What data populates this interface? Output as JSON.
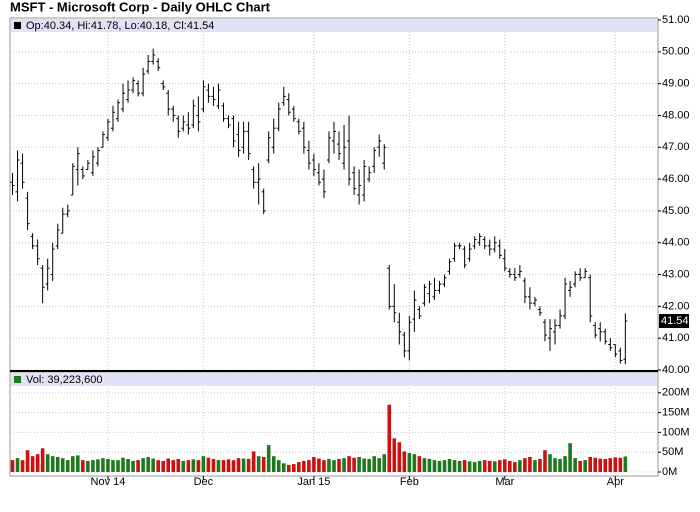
{
  "chart_data": {
    "type": "ohlc",
    "title": "MSFT - Microsoft Corp - Daily OHLC Chart",
    "ohlc_info": "Op:40.34, Hi:41.78, Lo:40.18, Cl:41.54",
    "volume_info": "Vol: 39,223,600",
    "last_price": 41.54,
    "xlim": [
      -0.5,
      128.5
    ],
    "xticks": [
      {
        "value": 19,
        "label": "Nov 14"
      },
      {
        "value": 38,
        "label": "Dec"
      },
      {
        "value": 60,
        "label": "Jan 15"
      },
      {
        "value": 79,
        "label": "Feb"
      },
      {
        "value": 98,
        "label": "Mar"
      },
      {
        "value": 120,
        "label": "Apr"
      }
    ],
    "ylim": [
      40,
      51
    ],
    "yticks": [
      {
        "value": 40,
        "label": "40.00"
      },
      {
        "value": 41,
        "label": "41.00"
      },
      {
        "value": 42,
        "label": "42.00"
      },
      {
        "value": 43,
        "label": "43.00"
      },
      {
        "value": 44,
        "label": "44.00"
      },
      {
        "value": 45,
        "label": "45.00"
      },
      {
        "value": 46,
        "label": "46.00"
      },
      {
        "value": 47,
        "label": "47.00"
      },
      {
        "value": 48,
        "label": "48.00"
      },
      {
        "value": 49,
        "label": "49.00"
      },
      {
        "value": 50,
        "label": "50.00"
      },
      {
        "value": 51,
        "label": "51.00"
      }
    ],
    "y2lim": [
      0,
      250
    ],
    "y2ticks": [
      {
        "value": 0,
        "label": "0M"
      },
      {
        "value": 50,
        "label": "50M"
      },
      {
        "value": 100,
        "label": "100M"
      },
      {
        "value": 150,
        "label": "150M"
      },
      {
        "value": 200,
        "label": "200M"
      }
    ],
    "grid": true,
    "bar_color": "#000000",
    "up_color": "#1f7a1f",
    "down_color": "#cc1111",
    "open": [
      45.9,
      45.6,
      46.5,
      45.4,
      44.2,
      43.9,
      43.2,
      42.7,
      43.0,
      43.9,
      44.3,
      44.9,
      45.5,
      46.3,
      46.3,
      46.3,
      46.2,
      46.5,
      47.0,
      47.3,
      47.6,
      47.9,
      48.2,
      48.5,
      48.8,
      49.0,
      48.7,
      49.4,
      49.7,
      49.7,
      49.0,
      48.7,
      48.2,
      47.9,
      47.6,
      47.7,
      47.7,
      48.0,
      48.2,
      48.8,
      48.6,
      48.3,
      48.3,
      47.9,
      47.9,
      47.4,
      47.0,
      47.5,
      46.3,
      45.9,
      45.6,
      46.6,
      47.0,
      47.6,
      48.4,
      48.5,
      48.2,
      47.8,
      47.6,
      46.9,
      46.6,
      46.2,
      46.0,
      46.6,
      47.2,
      47.1,
      46.5,
      47.2,
      46.2,
      45.5,
      45.5,
      46.0,
      46.4,
      47.0,
      46.5,
      43.2,
      42.0,
      41.5,
      41.1,
      40.6,
      41.6,
      41.9,
      42.1,
      42.4,
      42.3,
      42.5,
      42.7,
      43.1,
      43.5,
      43.9,
      43.8,
      43.5,
      43.9,
      44.0,
      44.1,
      43.9,
      43.8,
      43.9,
      43.5,
      43.1,
      43.0,
      43.0,
      42.8,
      42.3,
      42.1,
      41.9,
      41.5,
      41.0,
      41.2,
      41.4,
      41.7,
      42.5,
      42.7,
      43.0,
      42.9,
      42.9,
      41.4,
      41.3,
      41.2,
      40.8,
      40.8,
      40.6,
      40.34
    ],
    "high": [
      46.2,
      46.9,
      46.8,
      45.6,
      44.3,
      44.1,
      43.3,
      43.5,
      44.0,
      44.6,
      45.1,
      45.2,
      46.5,
      47.0,
      46.4,
      46.6,
      46.9,
      47.0,
      47.5,
      47.9,
      48.3,
      48.5,
      49.0,
      49.1,
      49.2,
      49.1,
      49.5,
      49.9,
      50.1,
      49.8,
      49.1,
      48.8,
      48.3,
      48.0,
      48.0,
      48.1,
      48.5,
      48.6,
      49.1,
      49.0,
      48.9,
      49.0,
      48.4,
      48.0,
      48.0,
      47.8,
      47.8,
      47.8,
      46.4,
      46.5,
      45.7,
      47.5,
      47.9,
      48.4,
      48.9,
      48.7,
      48.3,
      47.9,
      47.8,
      47.2,
      46.8,
      46.5,
      46.3,
      47.5,
      47.8,
      47.5,
      47.7,
      48.0,
      46.4,
      46.3,
      46.6,
      46.4,
      47.0,
      47.4,
      47.1,
      43.3,
      42.7,
      41.8,
      41.2,
      41.7,
      42.5,
      42.0,
      42.7,
      42.8,
      42.9,
      42.8,
      43.0,
      43.5,
      44.0,
      44.0,
      43.9,
      44.0,
      44.2,
      44.3,
      44.2,
      44.1,
      44.2,
      44.1,
      43.8,
      43.2,
      43.2,
      43.3,
      42.9,
      42.6,
      42.3,
      42.0,
      41.6,
      41.6,
      41.6,
      41.9,
      42.9,
      42.8,
      43.1,
      43.2,
      43.2,
      43.0,
      41.5,
      41.5,
      41.3,
      41.0,
      40.8,
      40.7,
      41.78
    ],
    "low": [
      45.5,
      45.3,
      45.7,
      44.4,
      43.8,
      43.3,
      42.1,
      42.5,
      42.8,
      43.8,
      44.3,
      44.8,
      45.5,
      45.8,
      46.0,
      46.3,
      46.1,
      46.4,
      47.0,
      47.2,
      47.5,
      47.8,
      48.1,
      48.4,
      48.7,
      48.6,
      48.6,
      49.3,
      49.6,
      49.4,
      48.8,
      48.0,
      47.8,
      47.3,
      47.5,
      47.4,
      47.6,
      47.5,
      48.1,
      48.4,
      48.3,
      48.2,
      47.8,
      47.6,
      47.0,
      46.7,
      46.8,
      46.6,
      45.7,
      45.2,
      44.9,
      46.5,
      46.8,
      47.5,
      48.3,
      48.0,
      47.8,
      47.4,
      46.8,
      46.3,
      46.1,
      45.8,
      45.4,
      46.5,
      46.8,
      46.6,
      46.3,
      45.8,
      45.5,
      45.2,
      45.3,
      45.9,
      46.2,
      46.7,
      46.3,
      41.9,
      41.5,
      40.8,
      40.4,
      40.3,
      41.2,
      41.6,
      42.0,
      42.1,
      42.2,
      42.4,
      42.6,
      43.0,
      43.4,
      43.8,
      43.2,
      43.4,
      43.8,
      43.9,
      43.8,
      43.6,
      43.7,
      43.5,
      43.1,
      42.9,
      42.8,
      42.9,
      42.1,
      41.9,
      42.0,
      41.7,
      40.9,
      40.6,
      40.8,
      41.3,
      41.6,
      42.3,
      42.6,
      42.8,
      42.9,
      41.5,
      41.0,
      40.9,
      40.8,
      40.6,
      40.4,
      40.2,
      40.18
    ],
    "close": [
      45.8,
      46.6,
      45.9,
      44.6,
      43.9,
      43.5,
      42.6,
      43.2,
      43.8,
      44.4,
      44.9,
      45.0,
      46.4,
      46.8,
      46.1,
      46.5,
      46.7,
      46.9,
      47.4,
      47.8,
      48.1,
      48.4,
      48.7,
      48.8,
      49.1,
      48.7,
      49.3,
      49.7,
      49.9,
      49.5,
      48.9,
      48.2,
      48.0,
      47.5,
      47.8,
      47.6,
      48.3,
      47.8,
      48.9,
      48.6,
      48.5,
      48.8,
      47.9,
      47.7,
      47.2,
      46.9,
      47.5,
      46.8,
      45.9,
      46.0,
      45.0,
      47.3,
      47.6,
      48.2,
      48.6,
      48.1,
      47.9,
      47.5,
      47.0,
      46.5,
      46.3,
      45.9,
      45.6,
      47.3,
      47.5,
      46.8,
      47.0,
      46.0,
      45.7,
      45.8,
      46.4,
      46.2,
      46.9,
      47.2,
      47.0,
      42.0,
      41.8,
      41.2,
      40.6,
      41.5,
      42.2,
      41.7,
      42.6,
      42.7,
      42.5,
      42.7,
      42.9,
      43.4,
      43.9,
      43.9,
      43.3,
      43.8,
      44.1,
      44.2,
      43.9,
      43.8,
      44.0,
      43.6,
      43.2,
      43.0,
      42.9,
      43.1,
      42.3,
      42.1,
      42.2,
      41.8,
      41.1,
      41.3,
      41.4,
      41.7,
      42.7,
      42.6,
      43.0,
      42.9,
      43.1,
      41.7,
      41.1,
      41.2,
      40.9,
      40.7,
      40.5,
      40.3,
      41.54
    ],
    "volume": [
      30,
      35,
      30,
      55,
      40,
      45,
      60,
      45,
      40,
      38,
      35,
      30,
      40,
      42,
      30,
      28,
      30,
      32,
      35,
      33,
      30,
      30,
      36,
      33,
      28,
      30,
      35,
      38,
      34,
      30,
      28,
      34,
      30,
      33,
      28,
      30,
      32,
      30,
      40,
      36,
      33,
      30,
      30,
      32,
      30,
      35,
      34,
      33,
      52,
      40,
      38,
      68,
      40,
      30,
      22,
      18,
      20,
      25,
      28,
      30,
      38,
      34,
      30,
      33,
      30,
      33,
      35,
      40,
      36,
      38,
      34,
      33,
      40,
      35,
      45,
      170,
      85,
      75,
      52,
      48,
      45,
      40,
      35,
      33,
      30,
      28,
      30,
      33,
      30,
      28,
      30,
      27,
      25,
      28,
      30,
      28,
      27,
      30,
      32,
      28,
      25,
      30,
      35,
      38,
      30,
      33,
      55,
      45,
      35,
      33,
      40,
      73,
      35,
      28,
      30,
      38,
      36,
      34,
      33,
      35,
      37,
      36,
      39.2236
    ]
  }
}
